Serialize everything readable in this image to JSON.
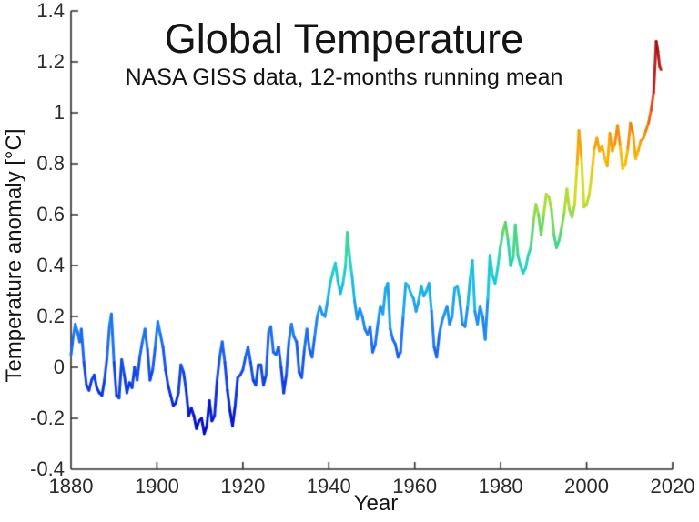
{
  "page": {
    "background": "#ffffff"
  },
  "chart_data": {
    "type": "line",
    "title": "Global Temperature",
    "subtitle": "NASA GISS data, 12-months running mean",
    "xlabel": "Year",
    "ylabel": "Temperature anomaly [°C]",
    "xlim": [
      1880,
      2020
    ],
    "ylim": [
      -0.4,
      1.4
    ],
    "grid": false,
    "legend": "none",
    "axis_color": "#2b2b2b",
    "text_color": "#141414",
    "line_width": 3,
    "x_ticks": [
      {
        "label": "1880",
        "value": 1880
      },
      {
        "label": "1900",
        "value": 1900
      },
      {
        "label": "1920",
        "value": 1920
      },
      {
        "label": "1940",
        "value": 1940
      },
      {
        "label": "1960",
        "value": 1960
      },
      {
        "label": "1980",
        "value": 1980
      },
      {
        "label": "2000",
        "value": 2000
      },
      {
        "label": "2020",
        "value": 2020
      }
    ],
    "y_ticks": [
      {
        "label": "-0.4",
        "value": -0.4
      },
      {
        "label": "-0.2",
        "value": -0.2
      },
      {
        "label": "0",
        "value": 0
      },
      {
        "label": "0.2",
        "value": 0.2
      },
      {
        "label": "0.4",
        "value": 0.4
      },
      {
        "label": "0.6",
        "value": 0.6
      },
      {
        "label": "0.8",
        "value": 0.8
      },
      {
        "label": "1",
        "value": 1
      },
      {
        "label": "1.2",
        "value": 1.2
      },
      {
        "label": "1.4",
        "value": 1.4
      }
    ],
    "color_by_value_stops": [
      [
        -0.4,
        "#00008f"
      ],
      [
        -0.25,
        "#0008c0"
      ],
      [
        -0.1,
        "#0a32d9"
      ],
      [
        0.0,
        "#1650e6"
      ],
      [
        0.1,
        "#1e6ceb"
      ],
      [
        0.2,
        "#1f8ef0"
      ],
      [
        0.3,
        "#18b5e6"
      ],
      [
        0.38,
        "#1ecfd0"
      ],
      [
        0.46,
        "#2fd5a8"
      ],
      [
        0.53,
        "#5ad46e"
      ],
      [
        0.6,
        "#8cd94e"
      ],
      [
        0.68,
        "#c0dc2e"
      ],
      [
        0.76,
        "#eed414"
      ],
      [
        0.84,
        "#f6b607"
      ],
      [
        0.92,
        "#f28c0e"
      ],
      [
        1.0,
        "#ea5f17"
      ],
      [
        1.1,
        "#d8351d"
      ],
      [
        1.2,
        "#b31a1a"
      ],
      [
        1.3,
        "#8a0f12"
      ]
    ],
    "series": [
      {
        "name": "temperature-anomaly-12mo-running-mean",
        "points": [
          [
            1880.0,
            0.05
          ],
          [
            1880.5,
            0.12
          ],
          [
            1881.0,
            0.17
          ],
          [
            1881.5,
            0.14
          ],
          [
            1882.0,
            0.1
          ],
          [
            1882.4,
            0.15
          ],
          [
            1883.0,
            0.02
          ],
          [
            1883.6,
            -0.07
          ],
          [
            1884.2,
            -0.09
          ],
          [
            1884.8,
            -0.05
          ],
          [
            1885.4,
            -0.03
          ],
          [
            1886.0,
            -0.08
          ],
          [
            1886.6,
            -0.1
          ],
          [
            1887.2,
            -0.11
          ],
          [
            1887.8,
            -0.05
          ],
          [
            1888.4,
            0.04
          ],
          [
            1889.0,
            0.17
          ],
          [
            1889.4,
            0.21
          ],
          [
            1890.0,
            0.02
          ],
          [
            1890.6,
            -0.11
          ],
          [
            1891.2,
            -0.12
          ],
          [
            1891.8,
            0.03
          ],
          [
            1892.4,
            -0.03
          ],
          [
            1893.0,
            -0.1
          ],
          [
            1893.6,
            -0.06
          ],
          [
            1894.2,
            -0.08
          ],
          [
            1894.8,
            0.0
          ],
          [
            1895.4,
            -0.05
          ],
          [
            1896.0,
            0.04
          ],
          [
            1896.6,
            0.1
          ],
          [
            1897.2,
            0.15
          ],
          [
            1897.8,
            0.07
          ],
          [
            1898.4,
            -0.05
          ],
          [
            1899.0,
            -0.01
          ],
          [
            1899.6,
            0.08
          ],
          [
            1900.2,
            0.18
          ],
          [
            1900.8,
            0.13
          ],
          [
            1901.4,
            0.08
          ],
          [
            1902.0,
            -0.01
          ],
          [
            1902.6,
            -0.07
          ],
          [
            1903.2,
            -0.11
          ],
          [
            1903.8,
            -0.15
          ],
          [
            1904.4,
            -0.14
          ],
          [
            1905.0,
            -0.1
          ],
          [
            1905.6,
            0.01
          ],
          [
            1906.2,
            -0.02
          ],
          [
            1906.8,
            -0.09
          ],
          [
            1907.4,
            -0.19
          ],
          [
            1908.0,
            -0.16
          ],
          [
            1908.6,
            -0.19
          ],
          [
            1909.2,
            -0.24
          ],
          [
            1909.8,
            -0.21
          ],
          [
            1910.4,
            -0.2
          ],
          [
            1911.0,
            -0.26
          ],
          [
            1911.6,
            -0.23
          ],
          [
            1912.2,
            -0.13
          ],
          [
            1912.8,
            -0.21
          ],
          [
            1913.4,
            -0.19
          ],
          [
            1914.0,
            -0.05
          ],
          [
            1914.6,
            0.04
          ],
          [
            1915.2,
            0.1
          ],
          [
            1915.8,
            0.02
          ],
          [
            1916.4,
            -0.09
          ],
          [
            1917.0,
            -0.17
          ],
          [
            1917.6,
            -0.23
          ],
          [
            1918.2,
            -0.15
          ],
          [
            1918.8,
            -0.04
          ],
          [
            1919.4,
            -0.03
          ],
          [
            1920.0,
            -0.01
          ],
          [
            1920.6,
            0.04
          ],
          [
            1921.2,
            0.08
          ],
          [
            1921.8,
            0.02
          ],
          [
            1922.4,
            -0.05
          ],
          [
            1923.0,
            -0.07
          ],
          [
            1923.6,
            0.01
          ],
          [
            1924.2,
            0.01
          ],
          [
            1924.8,
            -0.07
          ],
          [
            1925.4,
            -0.03
          ],
          [
            1926.0,
            0.14
          ],
          [
            1926.5,
            0.16
          ],
          [
            1927.1,
            0.06
          ],
          [
            1927.7,
            0.05
          ],
          [
            1928.3,
            0.08
          ],
          [
            1928.9,
            0.0
          ],
          [
            1929.5,
            -0.1
          ],
          [
            1930.1,
            -0.03
          ],
          [
            1930.7,
            0.1
          ],
          [
            1931.3,
            0.17
          ],
          [
            1931.9,
            0.12
          ],
          [
            1932.5,
            0.1
          ],
          [
            1933.1,
            -0.02
          ],
          [
            1933.7,
            -0.04
          ],
          [
            1934.3,
            0.07
          ],
          [
            1934.9,
            0.15
          ],
          [
            1935.5,
            0.07
          ],
          [
            1936.1,
            0.04
          ],
          [
            1936.7,
            0.12
          ],
          [
            1937.3,
            0.2
          ],
          [
            1937.9,
            0.24
          ],
          [
            1938.5,
            0.21
          ],
          [
            1939.1,
            0.2
          ],
          [
            1939.7,
            0.26
          ],
          [
            1940.3,
            0.33
          ],
          [
            1940.9,
            0.37
          ],
          [
            1941.5,
            0.41
          ],
          [
            1942.1,
            0.34
          ],
          [
            1942.7,
            0.29
          ],
          [
            1943.3,
            0.33
          ],
          [
            1943.9,
            0.4
          ],
          [
            1944.3,
            0.53
          ],
          [
            1944.8,
            0.44
          ],
          [
            1945.4,
            0.36
          ],
          [
            1946.0,
            0.26
          ],
          [
            1946.6,
            0.19
          ],
          [
            1947.2,
            0.23
          ],
          [
            1947.8,
            0.2
          ],
          [
            1948.4,
            0.15
          ],
          [
            1949.0,
            0.13
          ],
          [
            1949.6,
            0.16
          ],
          [
            1950.2,
            0.06
          ],
          [
            1950.8,
            0.09
          ],
          [
            1951.4,
            0.17
          ],
          [
            1952.0,
            0.24
          ],
          [
            1952.6,
            0.21
          ],
          [
            1953.2,
            0.31
          ],
          [
            1953.7,
            0.33
          ],
          [
            1954.3,
            0.15
          ],
          [
            1954.9,
            0.11
          ],
          [
            1955.5,
            0.09
          ],
          [
            1956.1,
            0.04
          ],
          [
            1956.7,
            0.06
          ],
          [
            1957.3,
            0.2
          ],
          [
            1957.9,
            0.33
          ],
          [
            1958.5,
            0.32
          ],
          [
            1959.1,
            0.29
          ],
          [
            1959.7,
            0.27
          ],
          [
            1960.3,
            0.22
          ],
          [
            1960.9,
            0.26
          ],
          [
            1961.5,
            0.32
          ],
          [
            1962.1,
            0.28
          ],
          [
            1962.7,
            0.3
          ],
          [
            1963.3,
            0.33
          ],
          [
            1963.9,
            0.22
          ],
          [
            1964.5,
            0.08
          ],
          [
            1965.1,
            0.04
          ],
          [
            1965.7,
            0.13
          ],
          [
            1966.3,
            0.18
          ],
          [
            1966.9,
            0.21
          ],
          [
            1967.5,
            0.24
          ],
          [
            1968.1,
            0.17
          ],
          [
            1968.7,
            0.2
          ],
          [
            1969.3,
            0.31
          ],
          [
            1969.9,
            0.32
          ],
          [
            1970.5,
            0.26
          ],
          [
            1971.1,
            0.17
          ],
          [
            1971.7,
            0.16
          ],
          [
            1972.3,
            0.24
          ],
          [
            1972.9,
            0.35
          ],
          [
            1973.4,
            0.42
          ],
          [
            1974.0,
            0.22
          ],
          [
            1974.6,
            0.17
          ],
          [
            1975.2,
            0.24
          ],
          [
            1975.8,
            0.2
          ],
          [
            1976.4,
            0.11
          ],
          [
            1977.0,
            0.27
          ],
          [
            1977.5,
            0.44
          ],
          [
            1978.1,
            0.36
          ],
          [
            1978.7,
            0.33
          ],
          [
            1979.3,
            0.39
          ],
          [
            1979.9,
            0.47
          ],
          [
            1980.5,
            0.53
          ],
          [
            1981.1,
            0.57
          ],
          [
            1981.7,
            0.5
          ],
          [
            1982.3,
            0.4
          ],
          [
            1982.9,
            0.43
          ],
          [
            1983.4,
            0.56
          ],
          [
            1984.0,
            0.44
          ],
          [
            1984.6,
            0.4
          ],
          [
            1985.2,
            0.37
          ],
          [
            1985.8,
            0.39
          ],
          [
            1986.4,
            0.44
          ],
          [
            1987.0,
            0.47
          ],
          [
            1987.6,
            0.57
          ],
          [
            1988.2,
            0.64
          ],
          [
            1988.8,
            0.6
          ],
          [
            1989.4,
            0.52
          ],
          [
            1990.0,
            0.6
          ],
          [
            1990.6,
            0.68
          ],
          [
            1991.2,
            0.67
          ],
          [
            1991.8,
            0.62
          ],
          [
            1992.4,
            0.52
          ],
          [
            1993.0,
            0.47
          ],
          [
            1993.6,
            0.5
          ],
          [
            1994.2,
            0.55
          ],
          [
            1994.8,
            0.61
          ],
          [
            1995.4,
            0.7
          ],
          [
            1996.0,
            0.62
          ],
          [
            1996.6,
            0.59
          ],
          [
            1997.2,
            0.64
          ],
          [
            1997.8,
            0.8
          ],
          [
            1998.2,
            0.93
          ],
          [
            1998.8,
            0.82
          ],
          [
            1999.4,
            0.63
          ],
          [
            2000.0,
            0.64
          ],
          [
            2000.6,
            0.68
          ],
          [
            2001.2,
            0.76
          ],
          [
            2001.8,
            0.86
          ],
          [
            2002.4,
            0.9
          ],
          [
            2003.0,
            0.85
          ],
          [
            2003.6,
            0.87
          ],
          [
            2004.2,
            0.82
          ],
          [
            2004.8,
            0.79
          ],
          [
            2005.4,
            0.92
          ],
          [
            2006.0,
            0.85
          ],
          [
            2006.6,
            0.88
          ],
          [
            2007.2,
            0.95
          ],
          [
            2007.8,
            0.87
          ],
          [
            2008.4,
            0.78
          ],
          [
            2009.0,
            0.8
          ],
          [
            2009.6,
            0.86
          ],
          [
            2010.2,
            0.96
          ],
          [
            2010.8,
            0.92
          ],
          [
            2011.4,
            0.82
          ],
          [
            2012.0,
            0.85
          ],
          [
            2012.6,
            0.89
          ],
          [
            2013.2,
            0.9
          ],
          [
            2013.8,
            0.93
          ],
          [
            2014.4,
            0.96
          ],
          [
            2015.0,
            1.01
          ],
          [
            2015.6,
            1.08
          ],
          [
            2016.2,
            1.28
          ],
          [
            2016.6,
            1.24
          ],
          [
            2017.0,
            1.18
          ],
          [
            2017.3,
            1.17
          ]
        ]
      }
    ]
  }
}
